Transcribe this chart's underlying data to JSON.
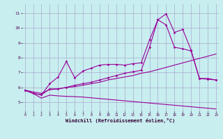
{
  "xlabel": "Windchill (Refroidissement éolien,°C)",
  "background_color": "#c8eef0",
  "grid_color": "#aaaacc",
  "line_color": "#990099",
  "x_ticks": [
    0,
    1,
    2,
    3,
    4,
    5,
    6,
    7,
    8,
    9,
    10,
    11,
    12,
    13,
    14,
    15,
    16,
    17,
    18,
    19,
    20,
    21,
    22,
    23
  ],
  "y_ticks": [
    5,
    6,
    7,
    8,
    9,
    10,
    11
  ],
  "ylim": [
    4.4,
    11.6
  ],
  "xlim": [
    -0.3,
    23.3
  ],
  "series1_x": [
    0,
    1,
    2,
    3,
    4,
    5,
    6,
    7,
    8,
    9,
    10,
    11,
    12,
    13,
    14,
    15,
    16,
    17,
    18,
    19,
    20,
    21,
    22,
    23
  ],
  "series1_y": [
    5.82,
    5.6,
    5.28,
    5.48,
    5.43,
    5.4,
    5.38,
    5.35,
    5.3,
    5.25,
    5.2,
    5.15,
    5.1,
    5.05,
    5.0,
    4.95,
    4.9,
    4.85,
    4.8,
    4.75,
    4.7,
    4.65,
    4.6,
    4.55
  ],
  "series2_x": [
    0,
    1,
    2,
    3,
    4,
    5,
    6,
    7,
    8,
    9,
    10,
    11,
    12,
    13,
    14,
    15,
    16,
    17,
    18,
    19,
    20,
    21,
    22,
    23
  ],
  "series2_y": [
    5.82,
    5.7,
    5.6,
    5.85,
    5.9,
    6.0,
    6.05,
    6.15,
    6.25,
    6.35,
    6.5,
    6.6,
    6.7,
    6.8,
    6.95,
    7.05,
    7.2,
    7.35,
    7.5,
    7.65,
    7.8,
    7.95,
    8.1,
    8.25
  ],
  "series3_x": [
    0,
    1,
    2,
    3,
    4,
    5,
    6,
    7,
    8,
    9,
    10,
    11,
    12,
    13,
    14,
    15,
    16,
    17,
    18,
    19,
    20,
    21,
    22,
    23
  ],
  "series3_y": [
    5.82,
    5.6,
    5.5,
    6.25,
    6.7,
    7.75,
    6.65,
    7.1,
    7.3,
    7.5,
    7.55,
    7.55,
    7.5,
    7.6,
    7.65,
    9.2,
    10.55,
    10.95,
    9.7,
    9.9,
    8.5,
    6.6,
    6.6,
    6.5
  ],
  "series4_x": [
    0,
    1,
    2,
    3,
    4,
    5,
    6,
    7,
    8,
    9,
    10,
    11,
    12,
    13,
    14,
    15,
    16,
    17,
    18,
    19,
    20,
    21,
    22,
    23
  ],
  "series4_y": [
    5.82,
    5.6,
    5.5,
    5.9,
    5.9,
    6.0,
    6.15,
    6.25,
    6.35,
    6.5,
    6.65,
    6.8,
    6.95,
    7.05,
    7.15,
    8.7,
    10.55,
    10.2,
    8.7,
    8.6,
    8.45,
    6.6,
    6.55,
    6.5
  ]
}
